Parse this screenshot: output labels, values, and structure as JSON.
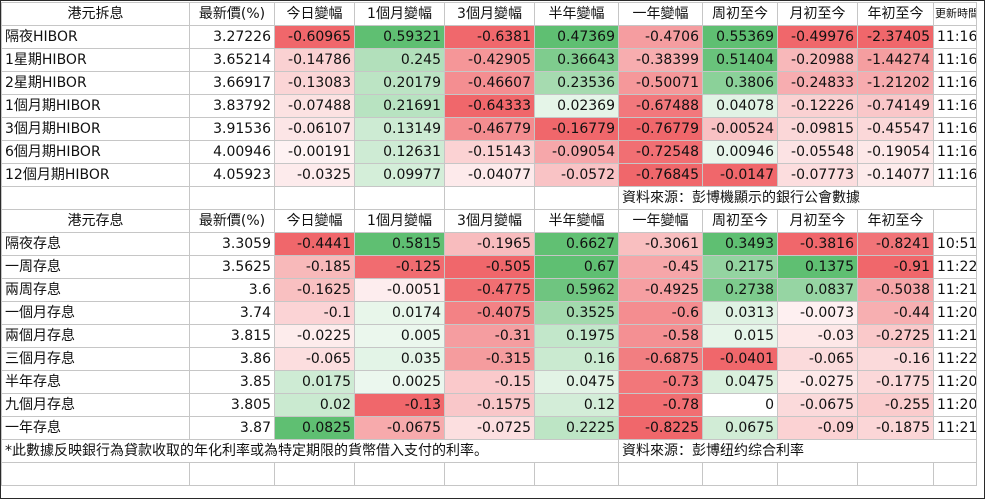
{
  "hibor": {
    "headers": [
      "港元拆息",
      "最新價(%)",
      "今日變幅",
      "1個月變幅",
      "3個月變幅",
      "半年變幅",
      "一年變幅",
      "周初至今",
      "月初至今",
      "年初至今",
      "更新時間"
    ],
    "rows": [
      {
        "name": "隔夜HIBOR",
        "price": "3.27226",
        "d1": "-0.60965",
        "m1": "0.59321",
        "m3": "-0.6381",
        "m6": "0.47369",
        "y1": "-0.4706",
        "wtd": "0.55369",
        "mtd": "-0.49976",
        "ytd": "-2.37405",
        "time": "11:16"
      },
      {
        "name": "1星期HIBOR",
        "price": "3.65214",
        "d1": "-0.14786",
        "m1": "0.245",
        "m3": "-0.42905",
        "m6": "0.36643",
        "y1": "-0.38399",
        "wtd": "0.51404",
        "mtd": "-0.20988",
        "ytd": "-1.44274",
        "time": "11:16"
      },
      {
        "name": "2星期HIBOR",
        "price": "3.66917",
        "d1": "-0.13083",
        "m1": "0.20179",
        "m3": "-0.46607",
        "m6": "0.23536",
        "y1": "-0.50071",
        "wtd": "0.3806",
        "mtd": "-0.24833",
        "ytd": "-1.21202",
        "time": "11:16"
      },
      {
        "name": "1個月期HIBOR",
        "price": "3.83792",
        "d1": "-0.07488",
        "m1": "0.21691",
        "m3": "-0.64333",
        "m6": "0.02369",
        "y1": "-0.67488",
        "wtd": "0.04078",
        "mtd": "-0.12226",
        "ytd": "-0.74149",
        "time": "11:16"
      },
      {
        "name": "3個月期HIBOR",
        "price": "3.91536",
        "d1": "-0.06107",
        "m1": "0.13149",
        "m3": "-0.46779",
        "m6": "-0.16779",
        "y1": "-0.76779",
        "wtd": "-0.00524",
        "mtd": "-0.09815",
        "ytd": "-0.45547",
        "time": "11:16"
      },
      {
        "name": "6個月期HIBOR",
        "price": "4.00946",
        "d1": "-0.00191",
        "m1": "0.12631",
        "m3": "-0.15143",
        "m6": "-0.09054",
        "y1": "-0.72548",
        "wtd": "0.00946",
        "mtd": "-0.05548",
        "ytd": "-0.19054",
        "time": "11:16"
      },
      {
        "name": "12個月期HIBOR",
        "price": "4.05923",
        "d1": "-0.0325",
        "m1": "0.09977",
        "m3": "-0.04077",
        "m6": "-0.0572",
        "y1": "-0.76845",
        "wtd": "-0.0147",
        "mtd": "-0.07773",
        "ytd": "-0.14077",
        "time": "11:16"
      }
    ],
    "source": "資料來源：彭博機顯示的銀行公會數據"
  },
  "deposit": {
    "headers": [
      "港元存息",
      "最新價(%)",
      "今日變幅",
      "1個月變幅",
      "3個月變幅",
      "半年變幅",
      "一年變幅",
      "周初至今",
      "月初至今",
      "年初至今"
    ],
    "rows": [
      {
        "name": "隔夜存息",
        "price": "3.3059",
        "d1": "-0.4441",
        "m1": "0.5815",
        "m3": "-0.1965",
        "m6": "0.6627",
        "y1": "-0.3061",
        "wtd": "0.3493",
        "mtd": "-0.3816",
        "ytd": "-0.8241",
        "time": "10:51"
      },
      {
        "name": "一周存息",
        "price": "3.5625",
        "d1": "-0.185",
        "m1": "-0.125",
        "m3": "-0.505",
        "m6": "0.67",
        "y1": "-0.45",
        "wtd": "0.2175",
        "mtd": "0.1375",
        "ytd": "-0.91",
        "time": "11:22"
      },
      {
        "name": "兩周存息",
        "price": "3.6",
        "d1": "-0.1625",
        "m1": "-0.0051",
        "m3": "-0.4775",
        "m6": "0.5962",
        "y1": "-0.4925",
        "wtd": "0.2738",
        "mtd": "0.0837",
        "ytd": "-0.5038",
        "time": "11:21"
      },
      {
        "name": "一個月存息",
        "price": "3.74",
        "d1": "-0.1",
        "m1": "0.0174",
        "m3": "-0.4075",
        "m6": "0.3525",
        "y1": "-0.6",
        "wtd": "0.0313",
        "mtd": "-0.0073",
        "ytd": "-0.44",
        "time": "11:20"
      },
      {
        "name": "兩個月存息",
        "price": "3.815",
        "d1": "-0.0225",
        "m1": "0.005",
        "m3": "-0.31",
        "m6": "0.1975",
        "y1": "-0.58",
        "wtd": "0.015",
        "mtd": "-0.03",
        "ytd": "-0.2725",
        "time": "11:21"
      },
      {
        "name": "三個月存息",
        "price": "3.86",
        "d1": "-0.065",
        "m1": "0.035",
        "m3": "-0.315",
        "m6": "0.16",
        "y1": "-0.6875",
        "wtd": "-0.0401",
        "mtd": "-0.065",
        "ytd": "-0.16",
        "time": "11:22"
      },
      {
        "name": "半年存息",
        "price": "3.85",
        "d1": "0.0175",
        "m1": "0.0025",
        "m3": "-0.15",
        "m6": "0.0475",
        "y1": "-0.73",
        "wtd": "0.0475",
        "mtd": "-0.0275",
        "ytd": "-0.1775",
        "time": "11:20"
      },
      {
        "name": "九個月存息",
        "price": "3.805",
        "d1": "0.02",
        "m1": "-0.13",
        "m3": "-0.1575",
        "m6": "0.12",
        "y1": "-0.78",
        "wtd": "0",
        "mtd": "-0.0675",
        "ytd": "-0.255",
        "time": "11:20"
      },
      {
        "name": "一年存息",
        "price": "3.87",
        "d1": "0.0825",
        "m1": "-0.0675",
        "m3": "-0.0725",
        "m6": "0.2225",
        "y1": "-0.8225",
        "wtd": "0.0675",
        "mtd": "-0.09",
        "ytd": "-0.1875",
        "time": "11:21"
      }
    ],
    "footnote": "*此數據反映銀行為貸款收取的年化利率或為特定期限的貨幣借入支付的利率。",
    "source": "資料來源：彭博纽约综合利率"
  },
  "colors": {
    "positive_max": "#5fbf72",
    "negative_max": "#f0676b",
    "neutral": "#ffffff",
    "grid": "#c6c6c6"
  }
}
